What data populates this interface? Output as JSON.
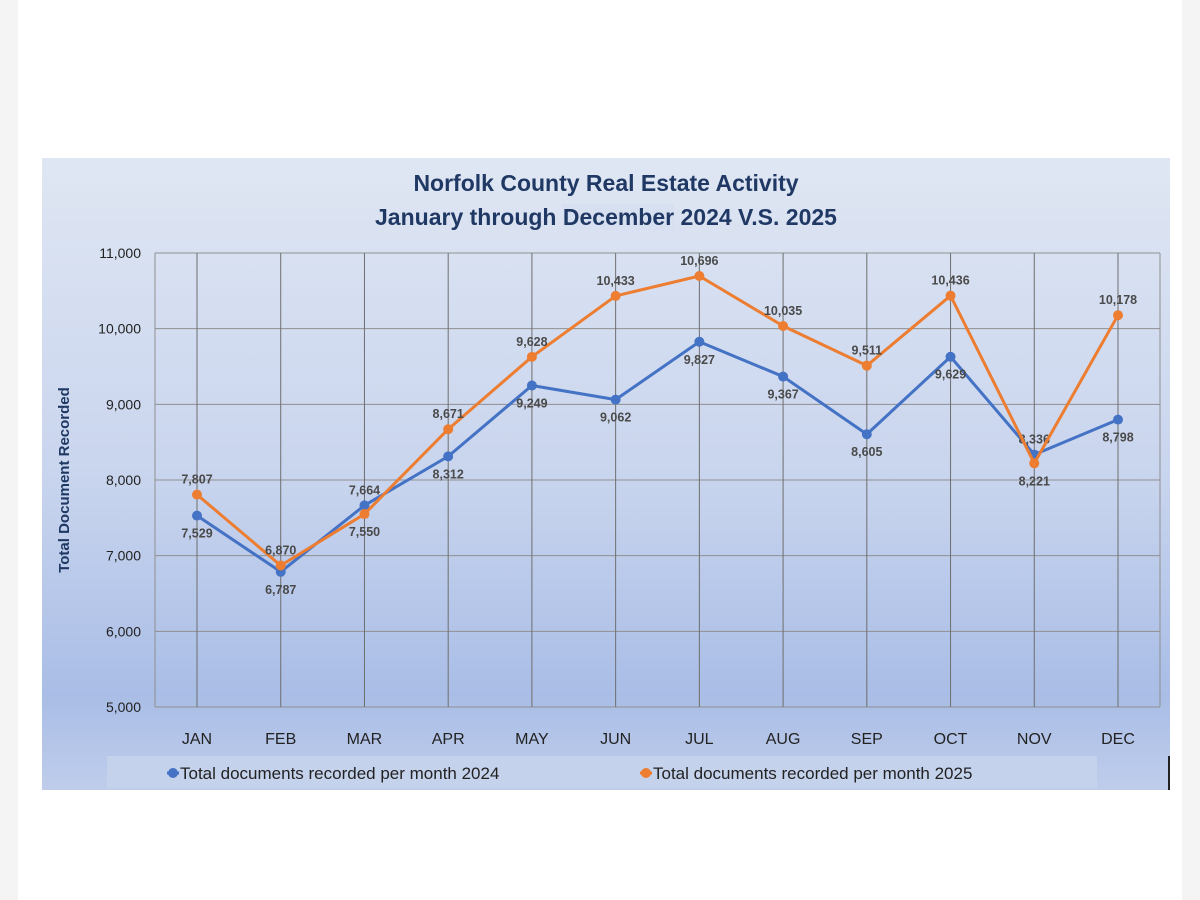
{
  "chart_data": {
    "type": "line",
    "title": "Norfolk County Real Estate Activity",
    "subtitle_parts": [
      "January through ",
      "December",
      " 2024 V.S. 2025"
    ],
    "ylabel": "Total Document Recorded",
    "xlabel": "",
    "ylim": [
      5000,
      11000
    ],
    "yticks": [
      "5,000",
      "6,000",
      "7,000",
      "8,000",
      "9,000",
      "10,000",
      "11,000"
    ],
    "ytick_values": [
      5000,
      6000,
      7000,
      8000,
      9000,
      10000,
      11000
    ],
    "categories": [
      "JAN",
      "FEB",
      "MAR",
      "APR",
      "MAY",
      "JUN",
      "JUL",
      "AUG",
      "SEP",
      "OCT",
      "NOV",
      "DEC"
    ],
    "grid": "both",
    "legend_position": "bottom",
    "series": [
      {
        "name": "Total documents recorded per month 2024",
        "color": "#4472c4",
        "values": [
          7529,
          6787,
          7664,
          8312,
          9249,
          9062,
          9827,
          9367,
          8605,
          9629,
          8336,
          8798
        ],
        "labels": [
          "7,529",
          "6,787",
          "7,664",
          "8,312",
          "9,249",
          "9,062",
          "9,827",
          "9,367",
          "8,605",
          "9,629",
          "8,336",
          "8,798"
        ]
      },
      {
        "name": "Total documents recorded per month 2025",
        "color": "#ed7d31",
        "values": [
          7807,
          6870,
          7550,
          8671,
          9628,
          10433,
          10696,
          10035,
          9511,
          10436,
          8221,
          10178
        ],
        "labels": [
          "7,807",
          "6,870",
          "7,550",
          "8,671",
          "9,628",
          "10,433",
          "10,696",
          "10,035",
          "9,511",
          "10,436",
          "8,221",
          "10,178"
        ]
      }
    ]
  }
}
